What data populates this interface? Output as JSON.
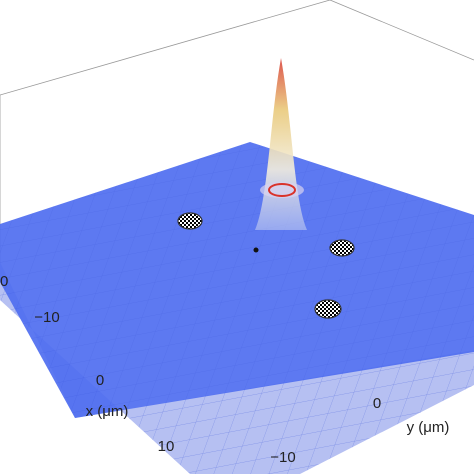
{
  "x_axis": {
    "label": "x (μm)",
    "ticks": [
      "−10",
      "0",
      "10"
    ]
  },
  "y_axis": {
    "label": "y (μm)",
    "ticks": [
      "0",
      "−10"
    ]
  },
  "z_axis": {
    "ticks": [
      "0"
    ]
  }
}
